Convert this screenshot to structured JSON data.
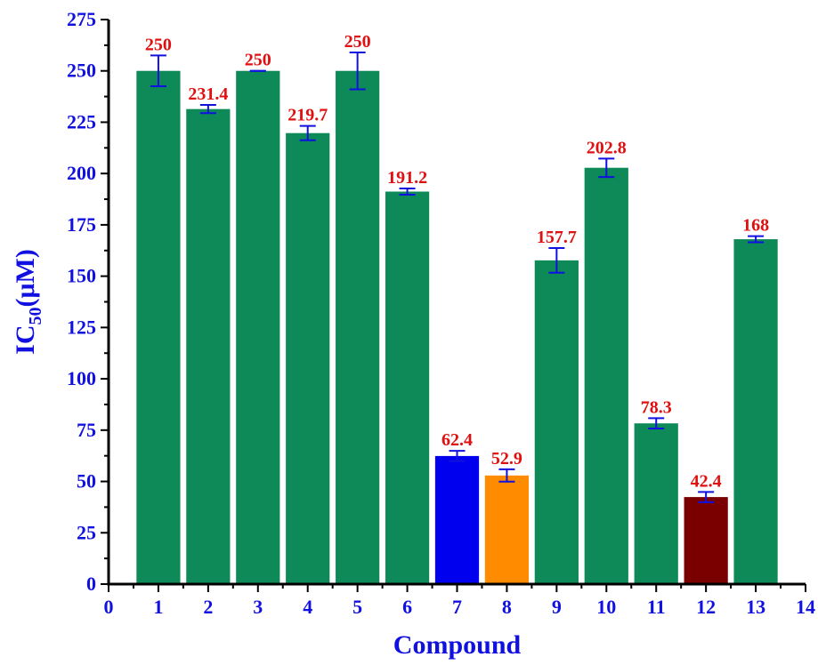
{
  "chart_data": {
    "type": "bar",
    "xlabel": "Compound",
    "ylabel_main": "IC",
    "ylabel_sub": "50",
    "ylabel_unit": "(μM)",
    "xlim": [
      0,
      14
    ],
    "ylim": [
      0,
      275
    ],
    "x_ticks": [
      0,
      1,
      2,
      3,
      4,
      5,
      6,
      7,
      8,
      9,
      10,
      11,
      12,
      13,
      14
    ],
    "y_ticks": [
      0,
      25,
      50,
      75,
      100,
      125,
      150,
      175,
      200,
      225,
      250,
      275
    ],
    "grid": false,
    "legend": "none",
    "categories": [
      1,
      2,
      3,
      4,
      5,
      6,
      7,
      8,
      9,
      10,
      11,
      12,
      13
    ],
    "values": [
      250,
      231.4,
      250,
      219.7,
      250,
      191.2,
      62.4,
      52.9,
      157.7,
      202.8,
      78.3,
      42.4,
      168
    ],
    "value_labels": [
      "250",
      "231.4",
      "250",
      "219.7",
      "250",
      "191.2",
      "62.4",
      "52.9",
      "157.7",
      "202.8",
      "78.3",
      "42.4",
      "168"
    ],
    "errors": [
      7.5,
      2,
      0,
      3.5,
      9,
      1.5,
      2.5,
      3,
      6,
      4.5,
      2.5,
      2.5,
      1.5
    ],
    "bar_colors": [
      "#0e8a59",
      "#0e8a59",
      "#0e8a59",
      "#0e8a59",
      "#0e8a59",
      "#0e8a59",
      "#0000ee",
      "#ff8c00",
      "#0e8a59",
      "#0e8a59",
      "#0e8a59",
      "#7a0000",
      "#0e8a59"
    ],
    "colors": {
      "axis_text": "#1010e0",
      "value_label": "#e01010",
      "error_bar": "#1010e0",
      "axis_line": "#000000"
    }
  }
}
